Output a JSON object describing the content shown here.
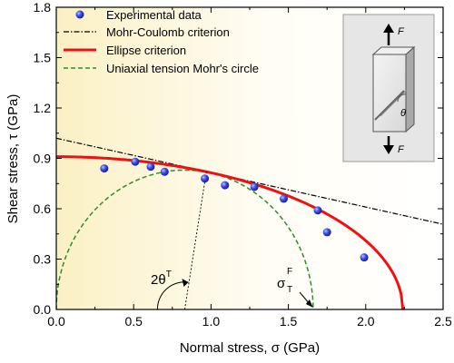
{
  "chart_data": {
    "type": "scatter",
    "xlabel_main": "Normal stress, ",
    "xlabel_sym": "σ",
    "xlabel_unit": " (GPa)",
    "ylabel_main": "Shear stress, ",
    "ylabel_sym": "τ",
    "ylabel_unit": " (GPa)",
    "xlim": [
      0.0,
      2.5
    ],
    "ylim": [
      0.0,
      1.8
    ],
    "x_ticks": [
      0.0,
      0.5,
      1.0,
      1.5,
      2.0,
      2.5
    ],
    "x_tick_labels": [
      "0.0",
      "0.5",
      "1.0",
      "1.5",
      "2.0",
      "2.5"
    ],
    "y_ticks": [
      0.0,
      0.3,
      0.6,
      0.9,
      1.2,
      1.5,
      1.8
    ],
    "y_tick_labels": [
      "0.0",
      "0.3",
      "0.6",
      "0.9",
      "1.2",
      "1.5",
      "1.8"
    ],
    "legend_position": "top-left",
    "legend": [
      {
        "label": "Experimental data",
        "style": "marker"
      },
      {
        "label": "Mohr-Coulomb criterion",
        "style": "dashdot"
      },
      {
        "label": "Ellipse criterion",
        "style": "solid-red"
      },
      {
        "label": "Uniaxial tension Mohr's circle",
        "style": "dashed-green"
      }
    ],
    "experimental": {
      "x": [
        0.31,
        0.51,
        0.61,
        0.7,
        0.96,
        1.09,
        1.28,
        1.47,
        1.69,
        1.75,
        1.99
      ],
      "y": [
        0.84,
        0.88,
        0.85,
        0.82,
        0.78,
        0.74,
        0.73,
        0.66,
        0.59,
        0.46,
        0.31
      ]
    },
    "mohr_coulomb": {
      "intercept": 1.02,
      "slope": -0.205
    },
    "ellipse": {
      "tau0": 0.91,
      "sigma0": 2.24
    },
    "mohr_circle": {
      "center": 0.83,
      "radius": 0.83
    },
    "annotations": {
      "two_theta_base": "2θ",
      "two_theta_sup": "T",
      "sigma_sym": "σ",
      "sigma_sup": "F",
      "sigma_sub": "T"
    },
    "inset": {
      "force_label_top": "F",
      "force_label_bottom": "F",
      "angle_label": "θ"
    },
    "colors": {
      "marker": "#2f3fd8",
      "ellipse": "#ee1111",
      "mohr_circle": "#2e8b2e",
      "mohr_coulomb": "#000000",
      "background_left": "#fbf0c4"
    }
  }
}
